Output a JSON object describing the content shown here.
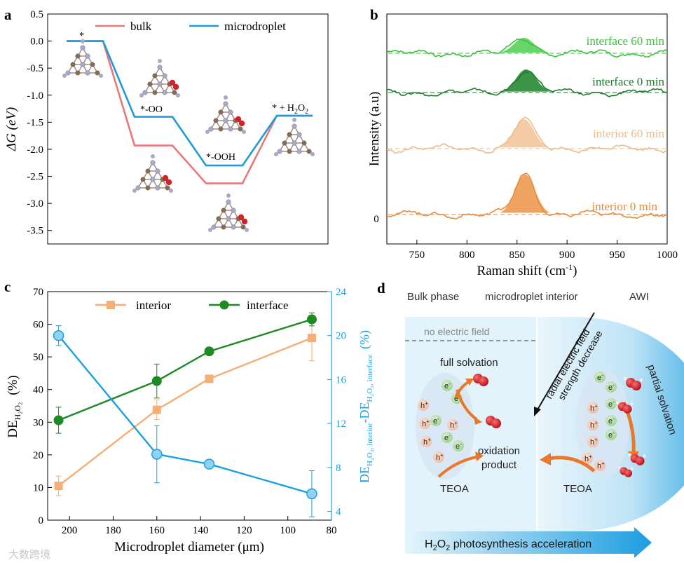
{
  "chart_data": [
    {
      "panel": "a",
      "type": "line",
      "ylabel": "ΔG (eV)",
      "ylim": [
        -3.75,
        0.5
      ],
      "yticks": [
        0.5,
        0.0,
        -0.5,
        -1.0,
        -1.5,
        -2.0,
        -2.5,
        -3.0,
        -3.5
      ],
      "ytick_labels": [
        "0.5",
        "0.0",
        "-0.5",
        "-1.0",
        "-1.5",
        "-2.0",
        "-2.5",
        "-3.0",
        "-3.5"
      ],
      "legend_placement": "top",
      "states": [
        "*",
        "*-OO",
        "*-OOH",
        "* + H₂O₂"
      ],
      "state_labels": {
        "s0": "*",
        "s1": "*-OO",
        "s2": "*-OOH",
        "s3_prefix": "* + H",
        "s3_sub1": "2",
        "s3_mid": "O",
        "s3_sub2": "2"
      },
      "series": [
        {
          "name": "bulk",
          "color": "#e8787a",
          "values": [
            0.0,
            -1.93,
            -2.63,
            -1.38
          ]
        },
        {
          "name": "microdroplet",
          "color": "#1e9ad6",
          "values": [
            0.0,
            -1.4,
            -2.3,
            -1.38
          ]
        }
      ]
    },
    {
      "panel": "b",
      "type": "line",
      "xlabel_prefix": "Raman shift (cm",
      "xlabel_sup": "-1",
      "xlabel_suffix": ")",
      "ylabel": "Intensity (a.u)",
      "xlim": [
        720,
        1000
      ],
      "xticks": [
        750,
        800,
        850,
        900,
        950,
        1000
      ],
      "ytick_zero": "0",
      "traces": [
        {
          "name": "interface 60 min",
          "color": "#3cc23c",
          "fill": "#5fd35f",
          "peak_center": 857,
          "peak_height": 1.0
        },
        {
          "name": "interface 0 min",
          "color": "#1e7a2a",
          "fill": "#2f8f3c",
          "peak_center": 859,
          "peak_height": 1.5
        },
        {
          "name": "interior 60 min",
          "color": "#eabb8c",
          "fill": "#f2c9a1",
          "peak_center": 857,
          "peak_height": 1.9
        },
        {
          "name": "interior 0 min",
          "color": "#e68a3c",
          "fill": "#ef9f5a",
          "peak_center": 858,
          "peak_height": 2.6
        }
      ]
    },
    {
      "panel": "c",
      "type": "line",
      "xlabel": "Microdroplet diameter (μm)",
      "ylabel_prefix": "DE",
      "ylabel_sub": "H₂O₂",
      "ylabel_suffix": "(%)",
      "y2label_prefix": "DE",
      "y2label_sub1": "H₂O₂, interior",
      "y2label_mid": "-DE",
      "y2label_sub2": "H₂O₂, interface",
      "y2label_suffix": "(%)",
      "xlim": [
        210,
        80
      ],
      "xticks": [
        200,
        180,
        160,
        140,
        120,
        100,
        80
      ],
      "ylim": [
        0,
        70
      ],
      "yticks": [
        0,
        10,
        20,
        30,
        40,
        50,
        60,
        70
      ],
      "y2lim": [
        3.2,
        24
      ],
      "y2ticks": [
        4,
        8,
        12,
        16,
        20,
        24
      ],
      "x": [
        205,
        160,
        136,
        89
      ],
      "legend_placement": "top",
      "series": [
        {
          "name": "interior",
          "axis": "left",
          "color": "#f5ae74",
          "marker": "square",
          "values": [
            10.5,
            33.8,
            43.3,
            55.8
          ],
          "errors": [
            3.0,
            3.0,
            0,
            7.0
          ]
        },
        {
          "name": "interface",
          "axis": "left",
          "color": "#1e8a24",
          "marker": "circle",
          "values": [
            30.6,
            42.6,
            51.7,
            61.5
          ],
          "errors": [
            4.0,
            5.2,
            0,
            2.0
          ]
        },
        {
          "name": "",
          "axis": "right",
          "color": "#1aa0e0",
          "marker": "circle",
          "values": [
            20.0,
            9.2,
            8.3,
            5.6
          ],
          "errors": [
            0.9,
            2.6,
            0,
            2.1
          ]
        }
      ]
    }
  ],
  "panel_labels": {
    "a": "a",
    "b": "b",
    "c": "c",
    "d": "d"
  },
  "diagram_d": {
    "titles": {
      "bulk": "Bulk phase",
      "interior": "microdroplet interior",
      "awi": "AWI"
    },
    "no_field": "no electric field",
    "radial_line1": "radial electric field",
    "radial_line2": "strength decrease",
    "full_solvation": "full solvation",
    "partial_solvation": "partial solvation",
    "oxidation_line1": "oxidation",
    "oxidation_line2": "product",
    "teoa_left": "TEOA",
    "teoa_right": "TEOA",
    "electron": "e",
    "hole": "h",
    "bottom_prefix": "H",
    "bottom_sub1": "2",
    "bottom_mid": "O",
    "bottom_sub2": "2",
    "bottom_suffix": " photosynthesis acceleration",
    "colors": {
      "bg": "#e3f3fb",
      "droplet": "#7cc6ec",
      "arrow": "#e9782a",
      "water": "#c8202a"
    }
  },
  "watermark": "大数跨境"
}
